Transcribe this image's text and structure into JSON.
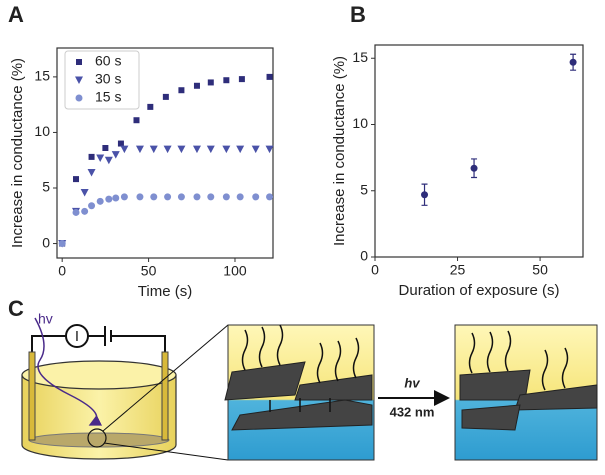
{
  "chart_data": [
    {
      "type": "scatter",
      "label": "A",
      "xlabel": "Time (s)",
      "ylabel": "Increase in conductance (%)",
      "xlim": [
        -3,
        122
      ],
      "ylim": [
        -1.3,
        17.6
      ],
      "xticks": [
        0,
        50,
        100
      ],
      "yticks": [
        0,
        5,
        10,
        15
      ],
      "legend": "upper left",
      "series": [
        {
          "name": "60 s",
          "color": "#2e2d7a",
          "marker": "square",
          "x": [
            0,
            8,
            17,
            25,
            34,
            43,
            51,
            60,
            69,
            78,
            86,
            95,
            104,
            120
          ],
          "values": [
            0,
            5.8,
            7.8,
            8.6,
            9.0,
            11.1,
            12.3,
            13.2,
            13.8,
            14.2,
            14.5,
            14.7,
            14.8,
            15.0
          ]
        },
        {
          "name": "30 s",
          "color": "#4a52a8",
          "marker": "triangle",
          "x": [
            0,
            8,
            13,
            17,
            22,
            27,
            31,
            36,
            45,
            53,
            61,
            69,
            78,
            86,
            95,
            103,
            112,
            120
          ],
          "values": [
            0,
            2.9,
            4.6,
            6.4,
            7.7,
            7.5,
            8.0,
            8.5,
            8.5,
            8.5,
            8.5,
            8.5,
            8.5,
            8.5,
            8.5,
            8.5,
            8.5,
            8.5
          ]
        },
        {
          "name": "15 s",
          "color": "#7f8fd0",
          "marker": "circle",
          "x": [
            0,
            8,
            13,
            17,
            22,
            27,
            31,
            36,
            45,
            53,
            61,
            69,
            78,
            86,
            95,
            103,
            112,
            120
          ],
          "values": [
            0,
            2.8,
            2.9,
            3.4,
            3.8,
            4.0,
            4.1,
            4.2,
            4.2,
            4.2,
            4.2,
            4.2,
            4.2,
            4.2,
            4.2,
            4.2,
            4.2,
            4.2
          ]
        }
      ]
    },
    {
      "type": "errorbar",
      "label": "B",
      "xlabel": "Duration of exposure (s)",
      "ylabel": "Increase in conductance (%)",
      "xlim": [
        0,
        63
      ],
      "ylim": [
        0,
        16
      ],
      "xticks": [
        0,
        25,
        50
      ],
      "yticks": [
        0,
        5,
        10,
        15
      ],
      "series": [
        {
          "color": "#2e2d7a",
          "marker": "circle",
          "x": [
            15,
            30,
            60
          ],
          "values": [
            4.7,
            6.7,
            14.7
          ],
          "errors": [
            0.8,
            0.7,
            0.6
          ]
        }
      ]
    }
  ],
  "diagram": {
    "label": "C",
    "light": "hv",
    "meter": "I",
    "arrow_top": "hv",
    "arrow_bottom": "432 nm"
  }
}
